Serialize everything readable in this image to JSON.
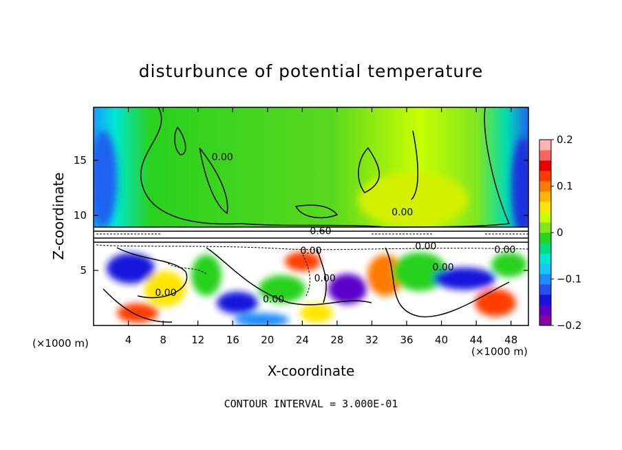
{
  "chart_data": {
    "type": "heatmap",
    "title": "disturbunce of potential temperature",
    "xlabel": "X-coordinate",
    "ylabel": "Z-coordinate",
    "x_unit": "(×1000 m)",
    "y_unit": "(×1000 m)",
    "xlim": [
      0,
      50
    ],
    "ylim": [
      0,
      19.8
    ],
    "x_ticks": [
      4,
      8,
      12,
      16,
      20,
      24,
      28,
      32,
      36,
      40,
      44,
      48
    ],
    "y_ticks": [
      5,
      10,
      15
    ],
    "colorbar": {
      "range": [
        -0.2,
        0.2
      ],
      "tick_values": [
        0.2,
        0.1,
        0,
        -0.1,
        -0.2
      ],
      "tick_labels": [
        "0.2",
        "0.1",
        "0",
        "−0.1",
        "−0.2"
      ],
      "colors": [
        "#8b00a0",
        "#5a00c8",
        "#1414dc",
        "#2850f0",
        "#1e8cff",
        "#14c8ff",
        "#00e6d2",
        "#00dc82",
        "#28d21e",
        "#82e61e",
        "#c8ff00",
        "#ffe600",
        "#ffb400",
        "#ff7800",
        "#ff3c00",
        "#e60000",
        "#ff6464",
        "#ffb4b4"
      ]
    },
    "contour_labels": [
      {
        "text": "0.60",
        "x": 26.1,
        "y": 8.6
      },
      {
        "text": "0.00",
        "x": 14.8,
        "y": 15.3
      },
      {
        "text": "0.00",
        "x": 35.5,
        "y": 10.3
      },
      {
        "text": "0.00",
        "x": 38.2,
        "y": 7.2
      },
      {
        "text": "0.00",
        "x": 40.2,
        "y": 5.3
      },
      {
        "text": "0.00",
        "x": 47.3,
        "y": 6.9
      },
      {
        "text": "0.00",
        "x": 8.3,
        "y": 3.0
      },
      {
        "text": "0.00",
        "x": 20.7,
        "y": 2.4
      },
      {
        "text": "0.00",
        "x": 26.6,
        "y": 4.3
      },
      {
        "text": "0.00",
        "x": 25.0,
        "y": 6.8
      }
    ],
    "contour_interval_text": "CONTOUR INTERVAL = 3.000E-01"
  }
}
